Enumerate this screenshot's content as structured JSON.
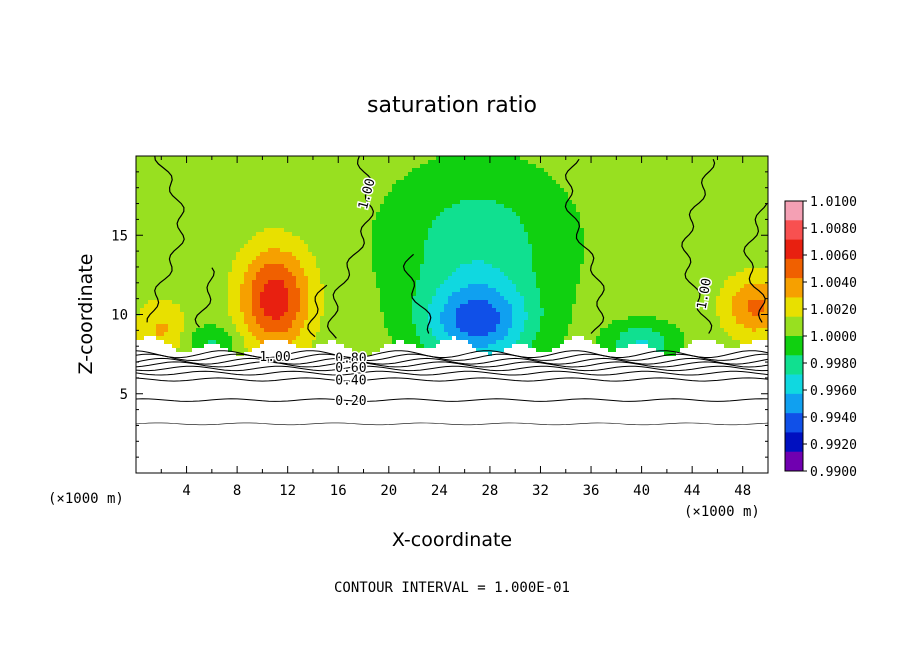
{
  "chart_data": {
    "type": "heatmap",
    "title": "saturation ratio",
    "xlabel": "X-coordinate",
    "ylabel": "Z-coordinate",
    "x_unit": "(×1000 m)",
    "y_unit": "",
    "xlim": [
      0,
      50
    ],
    "ylim": [
      0,
      20
    ],
    "x_ticks": [
      4,
      8,
      12,
      16,
      20,
      24,
      28,
      32,
      36,
      40,
      44,
      48
    ],
    "y_ticks": [
      5,
      10,
      15
    ],
    "colorbar": {
      "levels": [
        "1.0100",
        "1.0080",
        "1.0060",
        "1.0040",
        "1.0020",
        "1.0000",
        "0.9980",
        "0.9960",
        "0.9940",
        "0.9920",
        "0.9900"
      ],
      "colors": [
        "#f4a0b4",
        "#f85050",
        "#e82010",
        "#f06000",
        "#f6a000",
        "#e8e000",
        "#98e020",
        "#10d010",
        "#10e090",
        "#10d8e0",
        "#10a0f0",
        "#1050e8",
        "#0010c0",
        "#7000b0"
      ]
    },
    "contour_labels": [
      {
        "text": "1.00",
        "x": 18.3,
        "z": 17.6,
        "rot": -75
      },
      {
        "text": "1.00",
        "x": 45.0,
        "z": 11.3,
        "rot": -80
      },
      {
        "text": "1.00",
        "x": 11.0,
        "z": 7.3,
        "rot": 0
      },
      {
        "text": "0.80",
        "x": 17.0,
        "z": 7.2,
        "rot": 0
      },
      {
        "text": "0.60",
        "x": 17.0,
        "z": 6.6,
        "rot": 0
      },
      {
        "text": "0.40",
        "x": 17.0,
        "z": 5.8,
        "rot": 0
      },
      {
        "text": "0.20",
        "x": 17.0,
        "z": 4.5,
        "rot": 0
      }
    ],
    "grid": false,
    "annotation": "CONTOUR INTERVAL = 1.000E-01"
  }
}
